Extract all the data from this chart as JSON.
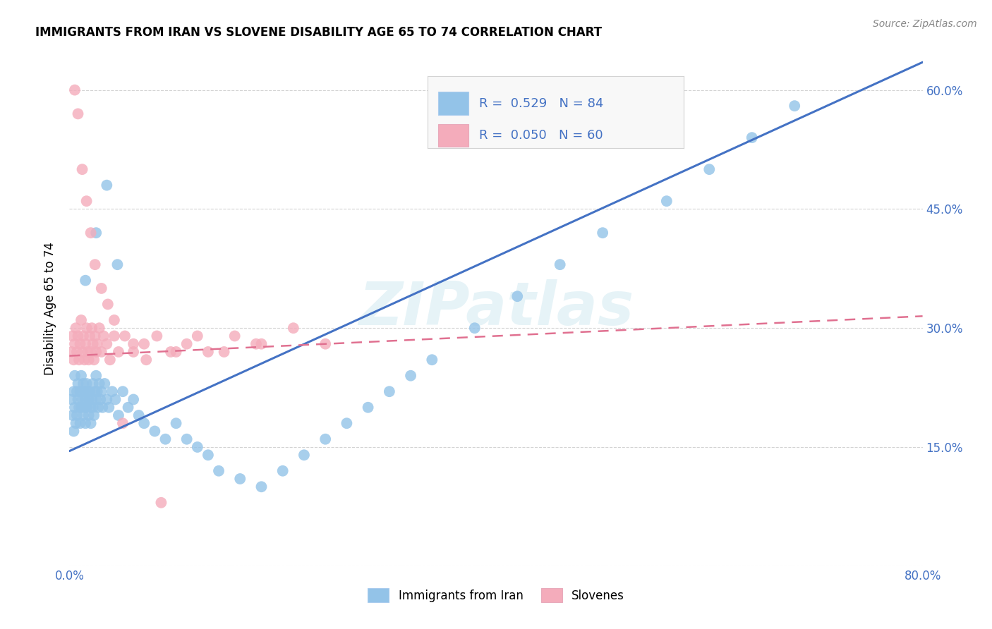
{
  "title": "IMMIGRANTS FROM IRAN VS SLOVENE DISABILITY AGE 65 TO 74 CORRELATION CHART",
  "source": "Source: ZipAtlas.com",
  "ylabel": "Disability Age 65 to 74",
  "xlim": [
    0.0,
    0.8
  ],
  "ylim": [
    0.0,
    0.65
  ],
  "blue_color": "#93C3E8",
  "pink_color": "#F4ACBB",
  "blue_line_color": "#4472C4",
  "pink_line_color": "#E07090",
  "legend_R1": "R =  0.529",
  "legend_N1": "N = 84",
  "legend_R2": "R =  0.050",
  "legend_N2": "N = 60",
  "legend_label1": "Immigrants from Iran",
  "legend_label2": "Slovenes",
  "watermark": "ZIPatlas",
  "blue_scatter_x": [
    0.002,
    0.003,
    0.004,
    0.004,
    0.005,
    0.005,
    0.006,
    0.007,
    0.007,
    0.008,
    0.008,
    0.009,
    0.01,
    0.01,
    0.011,
    0.011,
    0.012,
    0.013,
    0.013,
    0.014,
    0.014,
    0.015,
    0.015,
    0.016,
    0.016,
    0.017,
    0.018,
    0.018,
    0.019,
    0.02,
    0.02,
    0.021,
    0.022,
    0.022,
    0.023,
    0.024,
    0.025,
    0.025,
    0.026,
    0.027,
    0.028,
    0.029,
    0.03,
    0.031,
    0.033,
    0.035,
    0.037,
    0.04,
    0.043,
    0.046,
    0.05,
    0.055,
    0.06,
    0.065,
    0.07,
    0.08,
    0.09,
    0.1,
    0.11,
    0.12,
    0.13,
    0.14,
    0.16,
    0.18,
    0.2,
    0.22,
    0.24,
    0.26,
    0.28,
    0.3,
    0.32,
    0.34,
    0.38,
    0.42,
    0.46,
    0.5,
    0.56,
    0.6,
    0.64,
    0.68,
    0.015,
    0.025,
    0.035,
    0.045
  ],
  "blue_scatter_y": [
    0.21,
    0.19,
    0.22,
    0.17,
    0.2,
    0.24,
    0.18,
    0.22,
    0.19,
    0.21,
    0.23,
    0.2,
    0.18,
    0.22,
    0.2,
    0.24,
    0.21,
    0.19,
    0.23,
    0.2,
    0.22,
    0.21,
    0.18,
    0.23,
    0.2,
    0.22,
    0.21,
    0.19,
    0.22,
    0.2,
    0.18,
    0.21,
    0.23,
    0.2,
    0.19,
    0.22,
    0.21,
    0.24,
    0.22,
    0.2,
    0.23,
    0.21,
    0.22,
    0.2,
    0.23,
    0.21,
    0.2,
    0.22,
    0.21,
    0.19,
    0.22,
    0.2,
    0.21,
    0.19,
    0.18,
    0.17,
    0.16,
    0.18,
    0.16,
    0.15,
    0.14,
    0.12,
    0.11,
    0.1,
    0.12,
    0.14,
    0.16,
    0.18,
    0.2,
    0.22,
    0.24,
    0.26,
    0.3,
    0.34,
    0.38,
    0.42,
    0.46,
    0.5,
    0.54,
    0.58,
    0.36,
    0.42,
    0.48,
    0.38
  ],
  "pink_scatter_x": [
    0.002,
    0.003,
    0.004,
    0.005,
    0.006,
    0.007,
    0.008,
    0.009,
    0.01,
    0.011,
    0.012,
    0.013,
    0.014,
    0.015,
    0.016,
    0.017,
    0.018,
    0.019,
    0.02,
    0.021,
    0.022,
    0.023,
    0.024,
    0.025,
    0.026,
    0.028,
    0.03,
    0.032,
    0.035,
    0.038,
    0.042,
    0.046,
    0.052,
    0.06,
    0.07,
    0.082,
    0.095,
    0.11,
    0.13,
    0.155,
    0.18,
    0.21,
    0.24,
    0.005,
    0.008,
    0.012,
    0.016,
    0.02,
    0.024,
    0.03,
    0.036,
    0.042,
    0.05,
    0.06,
    0.072,
    0.086,
    0.1,
    0.12,
    0.145,
    0.175
  ],
  "pink_scatter_y": [
    0.27,
    0.29,
    0.26,
    0.28,
    0.3,
    0.27,
    0.29,
    0.26,
    0.28,
    0.31,
    0.27,
    0.29,
    0.26,
    0.28,
    0.3,
    0.27,
    0.26,
    0.29,
    0.27,
    0.3,
    0.28,
    0.26,
    0.29,
    0.27,
    0.28,
    0.3,
    0.27,
    0.29,
    0.28,
    0.26,
    0.29,
    0.27,
    0.29,
    0.27,
    0.28,
    0.29,
    0.27,
    0.28,
    0.27,
    0.29,
    0.28,
    0.3,
    0.28,
    0.6,
    0.57,
    0.5,
    0.46,
    0.42,
    0.38,
    0.35,
    0.33,
    0.31,
    0.18,
    0.28,
    0.26,
    0.08,
    0.27,
    0.29,
    0.27,
    0.28
  ],
  "blue_line_x": [
    0.0,
    0.8
  ],
  "blue_line_y": [
    0.145,
    0.635
  ],
  "pink_line_x": [
    0.0,
    0.8
  ],
  "pink_line_y": [
    0.265,
    0.315
  ],
  "right_tick_color": "#4472C4",
  "axis_tick_color": "#4472C4"
}
